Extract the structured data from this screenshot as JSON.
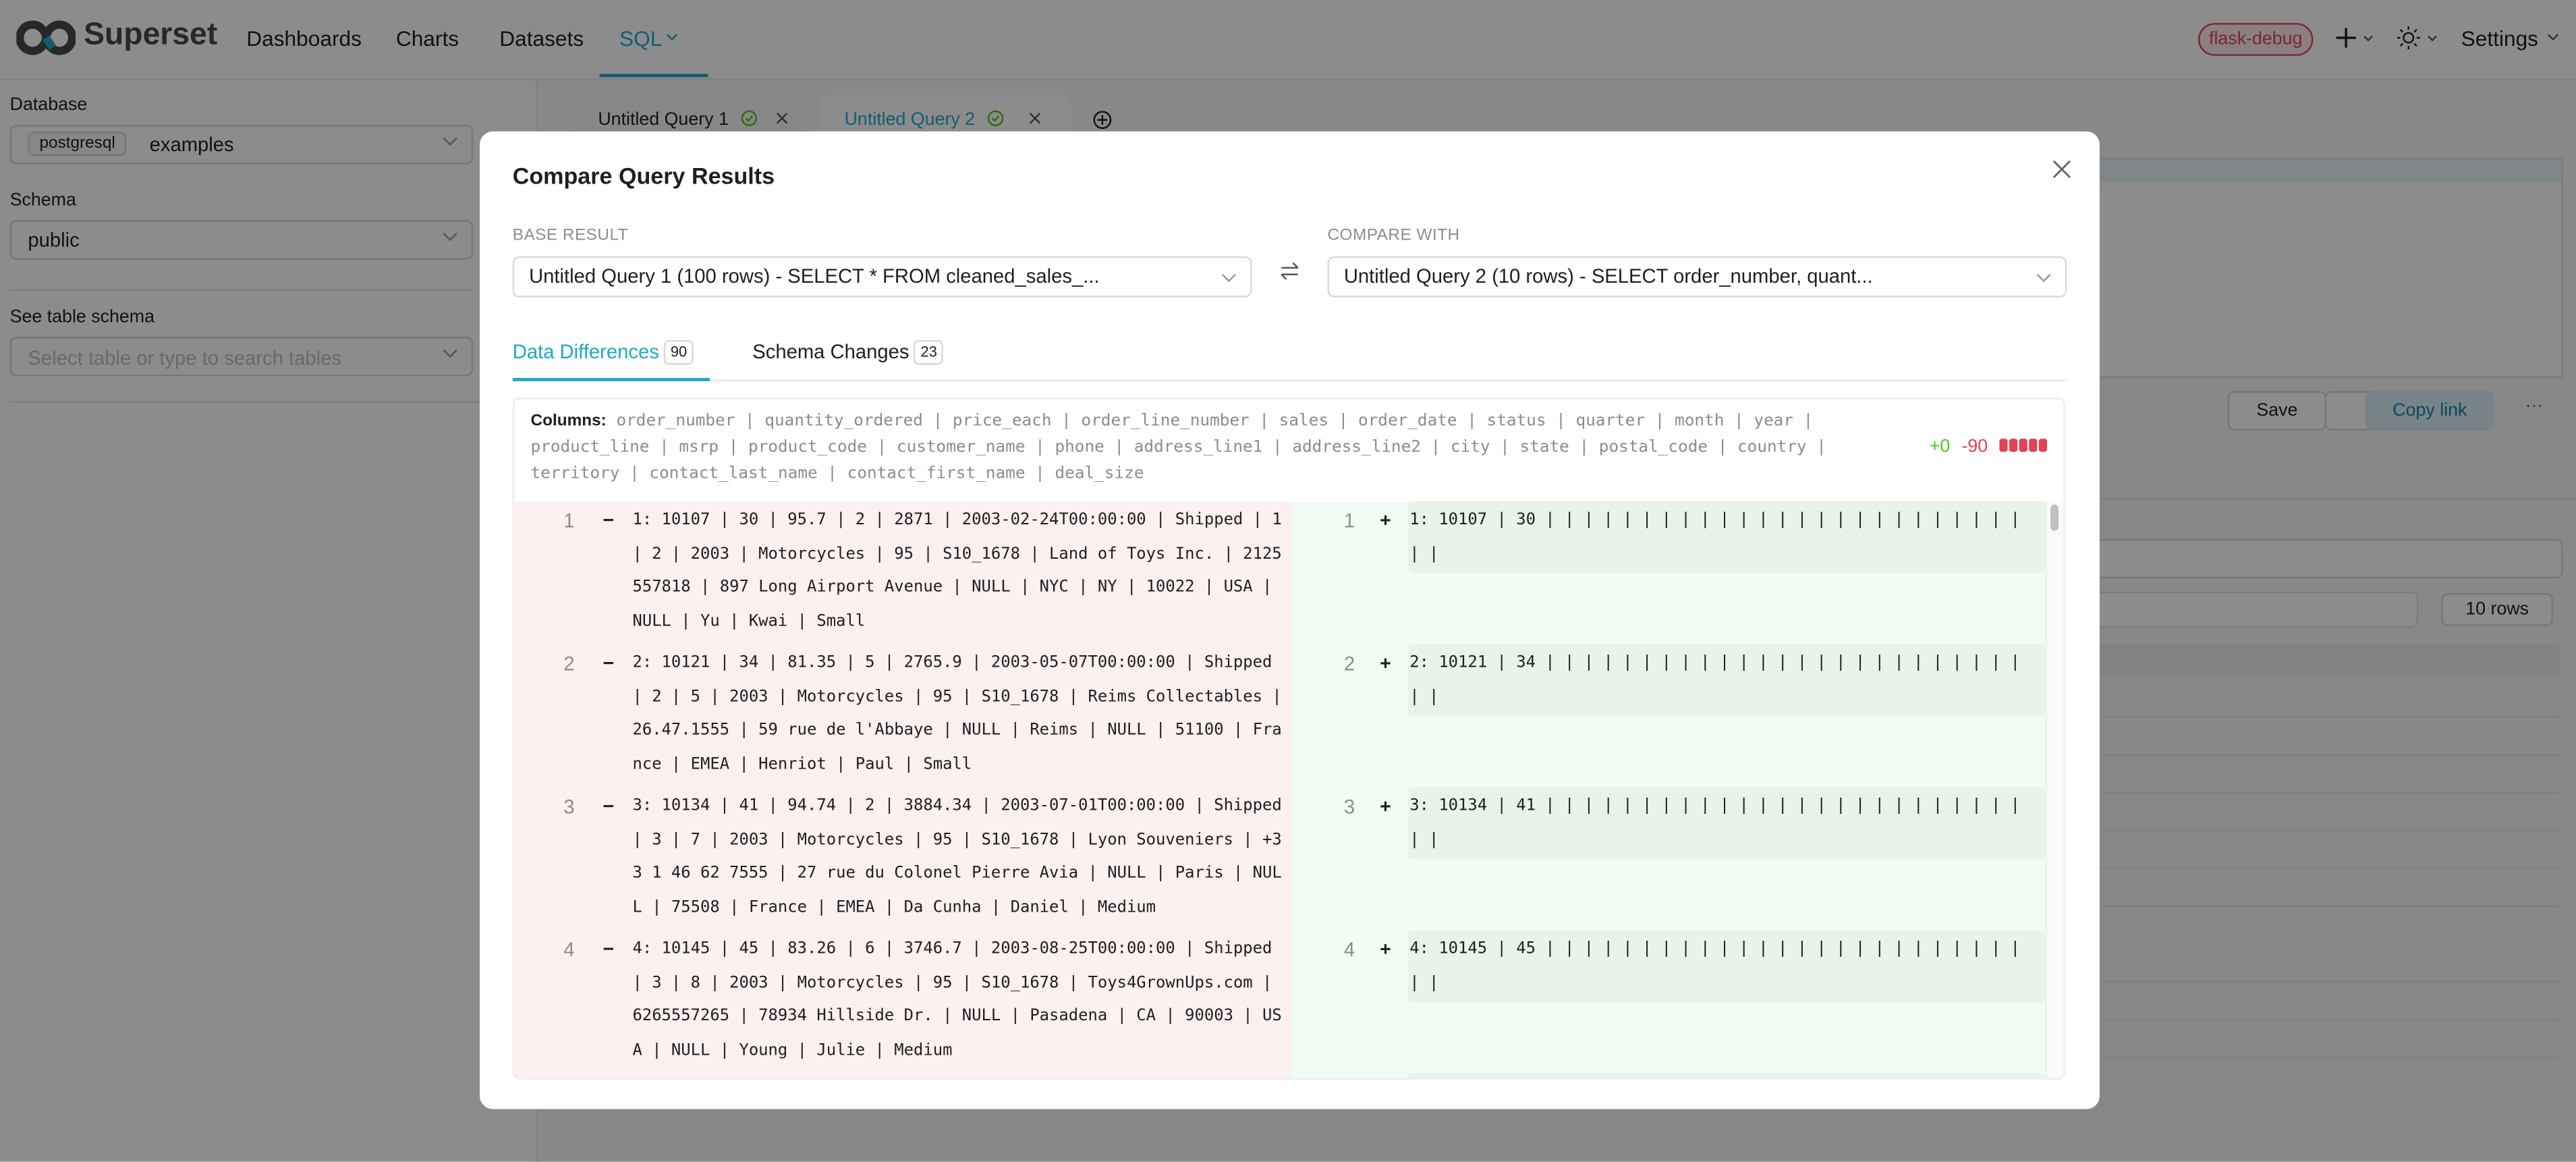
{
  "app": {
    "brand": "Superset",
    "accent": "#20a7c9"
  },
  "nav": {
    "items": [
      {
        "label": "Dashboards"
      },
      {
        "label": "Charts"
      },
      {
        "label": "Datasets"
      },
      {
        "label": "SQL"
      }
    ],
    "active": "SQL"
  },
  "header_right": {
    "env_badge": "flask-debug",
    "settings_label": "Settings"
  },
  "sidebar": {
    "database_label": "Database",
    "database_engine": "postgresql",
    "database_value": "examples",
    "schema_label": "Schema",
    "schema_value": "public",
    "table_label": "See table schema",
    "table_placeholder": "Select table or type to search tables"
  },
  "query_tabs": [
    {
      "label": "Untitled Query 1",
      "status": "success"
    },
    {
      "label": "Untitled Query 2",
      "status": "success",
      "active": true
    }
  ],
  "toolbar": {
    "save_label": "Save",
    "copy_link_label": "Copy link",
    "more_label": "···"
  },
  "results": {
    "row_count_label": "10 rows"
  },
  "modal": {
    "title": "Compare Query Results",
    "base_label": "BASE RESULT",
    "base_value": "Untitled Query 1 (100 rows) - SELECT * FROM cleaned_sales_...",
    "compare_label": "COMPARE WITH",
    "compare_value": "Untitled Query 2 (10 rows) - SELECT order_number, quant...",
    "tabs": [
      {
        "label": "Data Differences",
        "count": "90",
        "active": true
      },
      {
        "label": "Schema Changes",
        "count": "23"
      }
    ],
    "columns_label": "Columns:",
    "columns": "order_number | quantity_ordered | price_each | order_line_number | sales | order_date | status | quarter | month | year | product_line | msrp | product_code | customer_name | phone | address_line1 | address_line2 | city | state | postal_code | country | territory | contact_last_name | contact_first_name | deal_size",
    "stats": {
      "added": "+0",
      "removed": "-90",
      "added_color": "#52c41a",
      "removed_color": "#e04355",
      "removed_fraction": 1.0
    },
    "diff_rows": [
      {
        "num": "1",
        "removed_sign": "−",
        "removed": "1: 10107 | 30 | 95.7 | 2 | 2871 | 2003-02-24T00:00:00 | Shipped | 1 | 2 | 2003 | Motorcycles | 95 | S10_1678 | Land of Toys Inc. | 2125557818 | 897 Long Airport Avenue | NULL | NYC | NY | 10022 | USA | NULL | Yu | Kwai | Small",
        "added_sign": "+",
        "added": "1: 10107 | 30 | | | | | | | | | | | | | | | | | | | | | | | | | | |"
      },
      {
        "num": "2",
        "removed_sign": "−",
        "removed": "2: 10121 | 34 | 81.35 | 5 | 2765.9 | 2003-05-07T00:00:00 | Shipped | 2 | 5 | 2003 | Motorcycles | 95 | S10_1678 | Reims Collectables | 26.47.1555 | 59 rue de l'Abbaye | NULL | Reims | NULL | 51100 | France | EMEA | Henriot | Paul | Small",
        "added_sign": "+",
        "added": "2: 10121 | 34 | | | | | | | | | | | | | | | | | | | | | | | | | | |"
      },
      {
        "num": "3",
        "removed_sign": "−",
        "removed": "3: 10134 | 41 | 94.74 | 2 | 3884.34 | 2003-07-01T00:00:00 | Shipped | 3 | 7 | 2003 | Motorcycles | 95 | S10_1678 | Lyon Souveniers | +33 1 46 62 7555 | 27 rue du Colonel Pierre Avia | NULL | Paris | NULL | 75508 | France | EMEA | Da Cunha | Daniel | Medium",
        "added_sign": "+",
        "added": "3: 10134 | 41 | | | | | | | | | | | | | | | | | | | | | | | | | | |"
      },
      {
        "num": "4",
        "removed_sign": "−",
        "removed": "4: 10145 | 45 | 83.26 | 6 | 3746.7 | 2003-08-25T00:00:00 | Shipped | 3 | 8 | 2003 | Motorcycles | 95 | S10_1678 | Toys4GrownUps.com | 6265557265 | 78934 Hillside Dr. | NULL | Pasadena | CA | 90003 | USA | NULL | Young | Julie | Medium",
        "added_sign": "+",
        "added": "4: 10145 | 45 | | | | | | | | | | | | | | | | | | | | | | | | | | |"
      }
    ]
  }
}
